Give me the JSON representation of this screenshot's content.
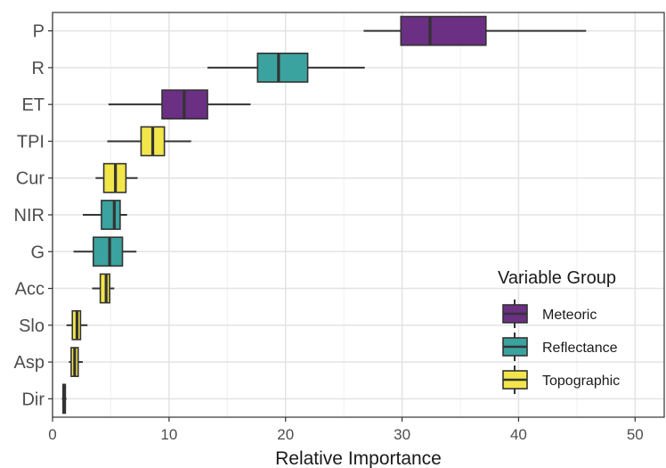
{
  "chart_data": {
    "type": "boxplot",
    "xlabel": "Relative Importance",
    "ylabel": "",
    "xlim": [
      0,
      52.5
    ],
    "xticks": [
      0,
      10,
      20,
      30,
      40,
      50
    ],
    "grid": true,
    "legend": {
      "title": "Variable Group",
      "position": "bottom-right",
      "entries": [
        {
          "name": "Meteoric",
          "color": "#6b2f84"
        },
        {
          "name": "Reflectance",
          "color": "#3aa39f"
        },
        {
          "name": "Topographic",
          "color": "#f3e64a"
        }
      ]
    },
    "categories": [
      "P",
      "R",
      "ET",
      "TPI",
      "Cur",
      "NIR",
      "G",
      "Acc",
      "Slo",
      "Asp",
      "Dir"
    ],
    "boxes": [
      {
        "label": "P",
        "group": "Meteoric",
        "min": 26.7,
        "q1": 29.9,
        "median": 32.4,
        "q3": 37.2,
        "max": 45.8
      },
      {
        "label": "R",
        "group": "Reflectance",
        "min": 13.3,
        "q1": 17.6,
        "median": 19.4,
        "q3": 21.9,
        "max": 26.8
      },
      {
        "label": "ET",
        "group": "Meteoric",
        "min": 4.8,
        "q1": 9.4,
        "median": 11.3,
        "q3": 13.3,
        "max": 17.0
      },
      {
        "label": "TPI",
        "group": "Topographic",
        "min": 4.7,
        "q1": 7.6,
        "median": 8.6,
        "q3": 9.6,
        "max": 11.9
      },
      {
        "label": "Cur",
        "group": "Topographic",
        "min": 3.7,
        "q1": 4.4,
        "median": 5.4,
        "q3": 6.3,
        "max": 7.3
      },
      {
        "label": "NIR",
        "group": "Reflectance",
        "min": 2.6,
        "q1": 4.2,
        "median": 5.3,
        "q3": 5.8,
        "max": 6.4
      },
      {
        "label": "G",
        "group": "Reflectance",
        "min": 1.8,
        "q1": 3.5,
        "median": 4.9,
        "q3": 6.0,
        "max": 7.2
      },
      {
        "label": "Acc",
        "group": "Topographic",
        "min": 3.4,
        "q1": 4.1,
        "median": 4.6,
        "q3": 4.9,
        "max": 5.3
      },
      {
        "label": "Slo",
        "group": "Topographic",
        "min": 1.2,
        "q1": 1.7,
        "median": 2.1,
        "q3": 2.4,
        "max": 3.0
      },
      {
        "label": "Asp",
        "group": "Topographic",
        "min": 1.4,
        "q1": 1.6,
        "median": 1.9,
        "q3": 2.2,
        "max": 2.6
      },
      {
        "label": "Dir",
        "group": "Topographic",
        "min": 0.8,
        "q1": 0.9,
        "median": 1.0,
        "q3": 1.1,
        "max": 1.2
      }
    ]
  }
}
